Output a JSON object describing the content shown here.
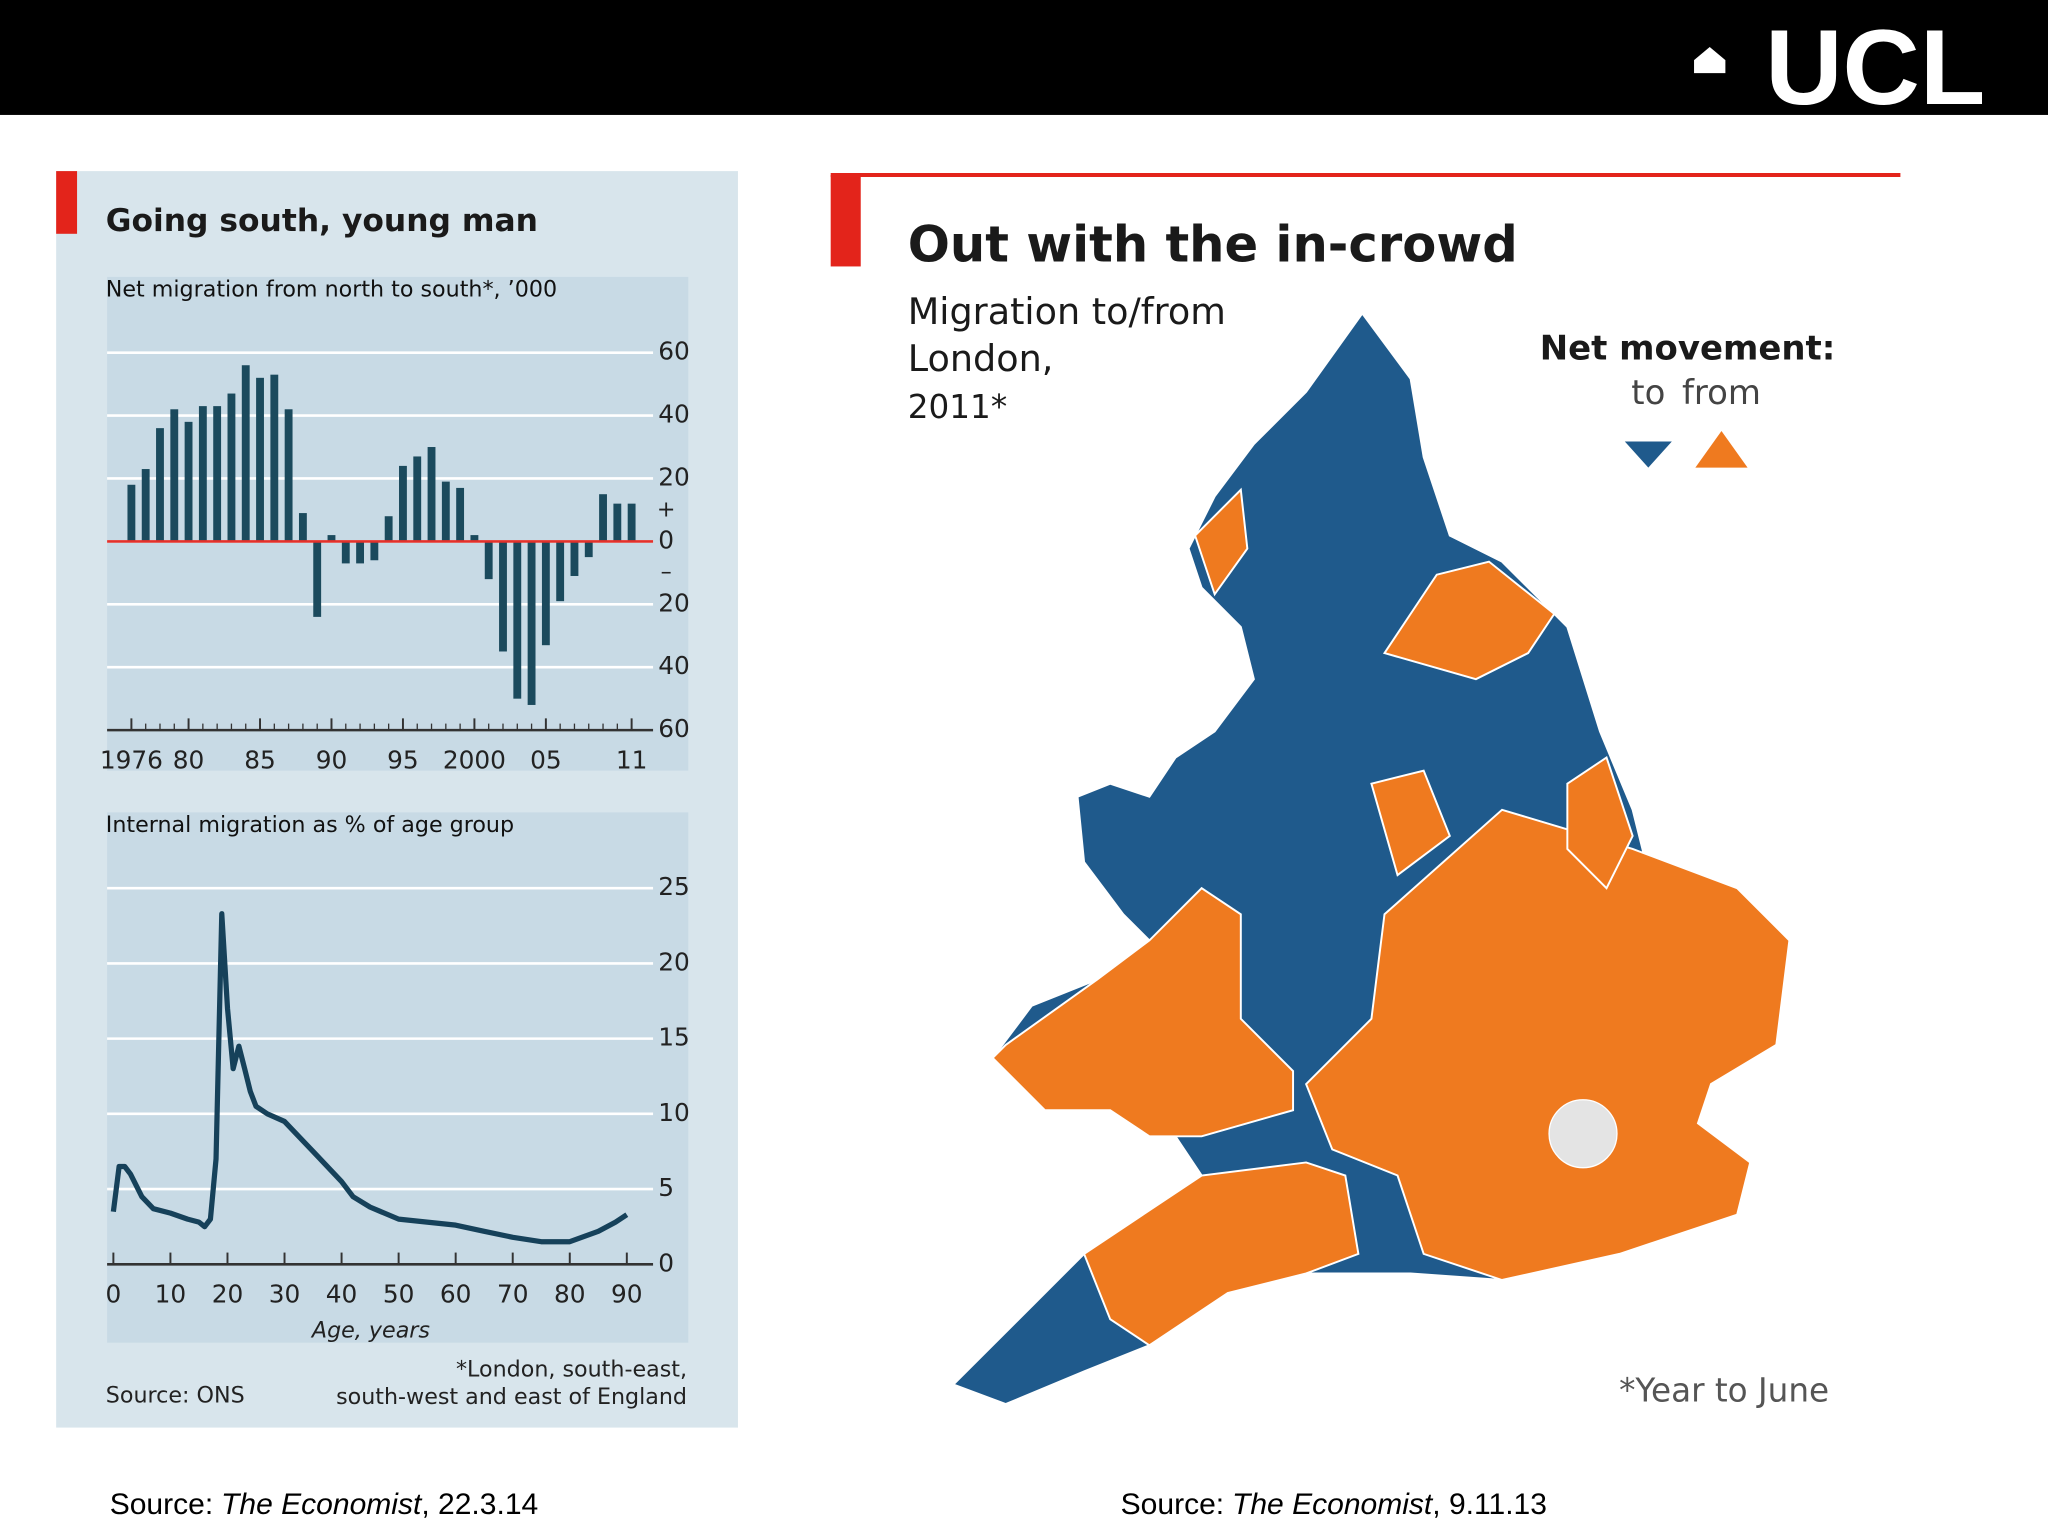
{
  "slide": {
    "logo": "UCL",
    "source_left": {
      "prefix": "Source:",
      "publication": "The Economist",
      "date": ", 22.3.14"
    },
    "source_right": {
      "prefix": "Source:",
      "publication": "The Economist",
      "date": ", 9.11.13"
    }
  },
  "left_panel": {
    "title": "Going south, young man",
    "source": "Source: ONS",
    "footnote": [
      "*London, south-east,",
      "south-west and east of England"
    ]
  },
  "chart_data": [
    {
      "type": "bar",
      "title": "Net migration from north to south*, ’000",
      "color": "#1b4a5d",
      "zero_line_color": "#e3312b",
      "x": [
        1976,
        1977,
        1978,
        1979,
        1980,
        1981,
        1982,
        1983,
        1984,
        1985,
        1986,
        1987,
        1988,
        1989,
        1990,
        1991,
        1992,
        1993,
        1994,
        1995,
        1996,
        1997,
        1998,
        1999,
        2000,
        2001,
        2002,
        2003,
        2004,
        2005,
        2006,
        2007,
        2008,
        2009,
        2010,
        2011
      ],
      "values": [
        18,
        23,
        36,
        42,
        38,
        43,
        43,
        47,
        56,
        52,
        53,
        42,
        9,
        -24,
        2,
        -7,
        -7,
        -6,
        8,
        24,
        27,
        30,
        19,
        17,
        2,
        -12,
        -35,
        -50,
        -52,
        -33,
        -19,
        -11,
        -5,
        15,
        12,
        12
      ],
      "xlim": [
        1974.3,
        2012.5
      ],
      "xticks": [
        {
          "value": 1976,
          "label": "1976"
        },
        {
          "value": 1980,
          "label": "80"
        },
        {
          "value": 1985,
          "label": "85"
        },
        {
          "value": 1990,
          "label": "90"
        },
        {
          "value": 1995,
          "label": "95"
        },
        {
          "value": 2000,
          "label": "2000"
        },
        {
          "value": 2005,
          "label": "05"
        },
        {
          "value": 2011,
          "label": "11"
        }
      ],
      "ylim": [
        -60,
        60
      ],
      "yticks": [
        60,
        40,
        20,
        0,
        {
          "value": -20,
          "label": "20"
        },
        {
          "value": -40,
          "label": "40"
        },
        {
          "value": -60,
          "label": "60"
        }
      ],
      "zero_signs": [
        "+",
        "–"
      ],
      "grid": true
    },
    {
      "type": "line",
      "title": "Internal migration as % of age group",
      "xlabel": "Age, years",
      "color": "#16415a",
      "x": [
        0,
        1,
        2,
        3,
        5,
        7,
        10,
        13,
        15,
        16,
        17,
        18,
        19,
        20,
        21,
        22,
        23,
        24,
        25,
        27,
        30,
        35,
        40,
        42,
        45,
        50,
        55,
        60,
        65,
        70,
        75,
        80,
        85,
        88,
        90
      ],
      "values": [
        3.5,
        6.5,
        6.5,
        6,
        4.5,
        3.7,
        3.4,
        3.0,
        2.8,
        2.5,
        3.0,
        7,
        23.3,
        17,
        13,
        14.5,
        13,
        11.5,
        10.5,
        10,
        9.5,
        7.5,
        5.5,
        4.5,
        3.8,
        3.0,
        2.8,
        2.6,
        2.2,
        1.8,
        1.5,
        1.5,
        2.2,
        2.8,
        3.3
      ],
      "xlim": [
        -1.1,
        94.6
      ],
      "xticks": [
        0,
        10,
        20,
        30,
        40,
        50,
        60,
        70,
        80,
        90
      ],
      "ylim": [
        0,
        25
      ],
      "yticks": [
        0,
        5,
        10,
        15,
        20,
        25
      ],
      "grid": true
    }
  ],
  "map": {
    "title": "Out with the in-crowd",
    "subtitle": [
      "Migration to/from",
      "London,",
      "2011*"
    ],
    "legend_title": "Net movement:",
    "legend": [
      {
        "name": "to",
        "color": "#1f5a8c"
      },
      {
        "name": "from",
        "color": "#ef7a1f"
      }
    ],
    "footnote": "*Year to June"
  }
}
